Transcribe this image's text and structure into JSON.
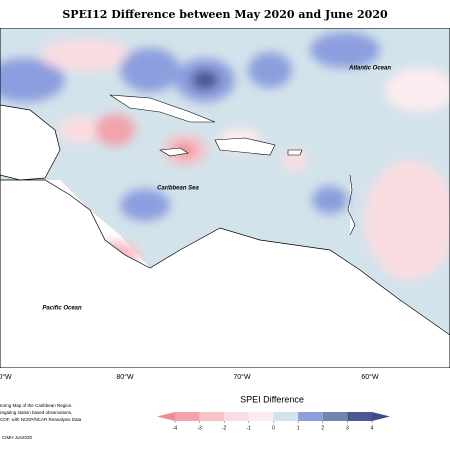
{
  "title": "SPEI12 Difference between May 2020 and June 2020",
  "labels": {
    "atlantic": "Atlantic Ocean",
    "caribbean": "Caribbean Sea",
    "pacific": "Pacific Ocean"
  },
  "lon_labels": [
    "0°W",
    "80°W",
    "70°W",
    "60°W"
  ],
  "legend": {
    "title": "SPEI Difference",
    "ticks": [
      -4,
      -3,
      -2,
      -1,
      0,
      1,
      2,
      3,
      4
    ],
    "colors": [
      "#f3a3ab",
      "#f7c3c9",
      "#fadde1",
      "#fcecef",
      "#d3e3eb",
      "#8c9ede",
      "#7186ad",
      "#4a5792"
    ],
    "extend_colors": [
      "#f08a94",
      "#3f4a88"
    ]
  },
  "footnote": [
    "toring Map of the Caribbean Region.",
    "regating station based observations,",
    "COF, with NCEP/NCAR Reanalysis Data"
  ],
  "credit": "CIMH Jun2020"
}
